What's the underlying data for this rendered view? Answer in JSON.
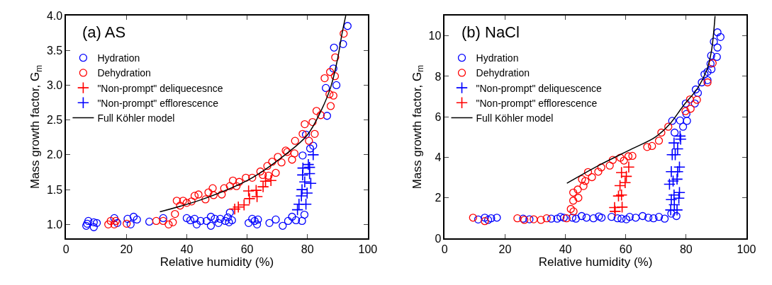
{
  "chart_data": [
    {
      "type": "scatter",
      "title": "(a) AS",
      "xlabel": "Relative humidity (%)",
      "ylabel": "Mass growth factor, G$_{m}$",
      "xlim": [
        0,
        100
      ],
      "xticks": [
        0,
        20,
        40,
        60,
        80,
        100
      ],
      "ylim": [
        0.8,
        4.0
      ],
      "yticks": [
        {
          "value": 1.0,
          "label": "1.0"
        },
        {
          "value": 1.5,
          "label": "1.5"
        },
        {
          "value": 2.0,
          "label": "2.0"
        },
        {
          "value": 2.5,
          "label": "2.5"
        },
        {
          "value": 3.0,
          "label": "3.0"
        },
        {
          "value": 3.5,
          "label": "3.5"
        },
        {
          "value": 4.0,
          "label": "4.0"
        }
      ],
      "legend": "top left",
      "series": [
        {
          "name": "Hydration",
          "color": "#0000ff",
          "marker": "circle",
          "x": [
            7.0,
            7.4,
            9.2,
            10.2,
            6.7,
            9.2,
            16.0,
            17.0,
            20.4,
            21.4,
            22.4,
            23.5,
            27.6,
            32.2,
            40.0,
            41.2,
            42.6,
            43.3,
            44.6,
            46.6,
            48.0,
            48.0,
            49.3,
            50.5,
            51.1,
            52.8,
            53.6,
            54.3,
            55.0,
            54.0,
            60.5,
            61.7,
            62.5,
            63.6,
            63.3,
            67.4,
            69.5,
            71.8,
            73.6,
            74.9,
            76.2,
            78.2,
            79.0,
            78.4,
            80.9,
            81.9,
            79.5,
            86.5,
            89.6,
            86.1,
            88.6,
            88.8,
            91.8,
            93.3
          ],
          "values": [
            1.01,
            1.05,
            1.03,
            1.02,
            0.98,
            0.96,
            1.09,
            1.02,
            1.08,
            1.0,
            1.11,
            1.07,
            1.04,
            1.09,
            1.09,
            1.06,
            1.08,
            1.0,
            1.05,
            1.05,
            1.11,
            0.98,
            1.08,
            1.02,
            1.08,
            1.05,
            1.1,
            1.17,
            1.06,
            1.03,
            1.02,
            1.08,
            1.05,
            1.07,
            1.0,
            1.02,
            1.07,
            0.98,
            1.05,
            1.11,
            1.06,
            1.05,
            1.14,
            1.99,
            2.09,
            2.13,
            2.29,
            2.56,
            3.0,
            2.96,
            3.24,
            3.54,
            3.59,
            3.85
          ]
        },
        {
          "name": "Dehydration",
          "color": "#ff0000",
          "marker": "circle",
          "x": [
            14.0,
            14.8,
            16.0,
            16.5,
            20.1,
            29.9,
            32.2,
            34.0,
            35.4,
            36.1,
            36.7,
            37.8,
            38.8,
            40.0,
            41.6,
            42.6,
            43.9,
            46.2,
            47.2,
            48.9,
            48.6,
            51.6,
            52.4,
            54.3,
            55.3,
            56.5,
            57.4,
            59.6,
            61.7,
            64.4,
            65.2,
            67.1,
            66.7,
            68.3,
            69.5,
            70.2,
            71.4,
            72.8,
            73.3,
            74.9,
            75.7,
            75.9,
            78.4,
            79.1,
            80.5,
            81.7,
            82.4,
            83.0,
            84.4,
            87.7,
            88.6,
            87.3,
            85.7,
            87.5,
            89.1,
            89.2,
            92.0
          ],
          "values": [
            1.0,
            1.05,
            1.0,
            1.05,
            1.01,
            1.05,
            1.05,
            1.0,
            1.03,
            1.15,
            1.34,
            1.27,
            1.34,
            1.31,
            1.33,
            1.41,
            1.43,
            1.36,
            1.46,
            1.42,
            1.52,
            1.43,
            1.52,
            1.55,
            1.63,
            1.55,
            1.61,
            1.67,
            1.67,
            1.76,
            1.71,
            1.7,
            1.84,
            1.9,
            1.74,
            1.97,
            1.89,
            2.06,
            2.04,
            1.93,
            2.02,
            2.2,
            2.3,
            2.44,
            2.2,
            2.47,
            2.3,
            2.63,
            2.57,
            2.7,
            2.85,
            2.87,
            3.1,
            3.19,
            3.13,
            3.4,
            3.74
          ]
        },
        {
          "name": "\"Non-prompt\" deliquecesnce",
          "color": "#ff0000",
          "marker": "cross",
          "x": [
            55.9,
            57.1,
            59.0,
            60.8,
            60.5,
            63.3,
            63.0,
            65.3,
            66.1,
            67.9
          ],
          "values": [
            1.22,
            1.25,
            1.28,
            1.37,
            1.48,
            1.4,
            1.49,
            1.54,
            1.62,
            1.63
          ]
        },
        {
          "name": "\"Non-prompt\" efflorescence",
          "color": "#0000ff",
          "marker": "cross",
          "x": [
            76.7,
            77.2,
            79.5,
            78.0,
            79.9,
            78.2,
            79.1,
            81.1,
            78.4,
            80.7,
            78.5,
            80.7,
            80.3,
            81.9
          ],
          "values": [
            1.21,
            1.29,
            1.29,
            1.41,
            1.45,
            1.5,
            1.61,
            1.59,
            1.71,
            1.73,
            1.81,
            1.82,
            1.86,
            2.0
          ]
        },
        {
          "name": "Full Köhler model",
          "color": "#000000",
          "type": "line",
          "marker": "none",
          "x": [
            31.1,
            45.8,
            61.3,
            72.9,
            79.9,
            84.6,
            87.7,
            90.0,
            91.5,
            92.7
          ],
          "values": [
            1.18,
            1.37,
            1.66,
            2.01,
            2.28,
            2.64,
            2.97,
            3.38,
            3.75,
            4.0
          ]
        }
      ]
    },
    {
      "type": "scatter",
      "title": "(b) NaCl",
      "xlabel": "Relative humidity (%)",
      "ylabel": "Mass growth factor, G$_{m}$",
      "xlim": [
        0,
        100
      ],
      "xticks": [
        0,
        20,
        40,
        60,
        80,
        100
      ],
      "ylim": [
        0,
        11
      ],
      "yticks": [
        0,
        2,
        4,
        6,
        8,
        10
      ],
      "legend": "top left",
      "series": [
        {
          "name": "Hydration",
          "color": "#0000ff",
          "marker": "circle",
          "x": [
            11.1,
            13.3,
            14.4,
            15.4,
            17.3,
            26.0,
            28.1,
            35.3,
            37.3,
            38.4,
            39.5,
            42.3,
            43.5,
            45.4,
            47.0,
            49.3,
            51.1,
            52.0,
            55.3,
            57.3,
            58.6,
            60.2,
            61.3,
            63.3,
            65.6,
            67.5,
            69.2,
            71.0,
            72.9,
            75.1,
            76.8,
            76.2,
            75.4,
            78.0,
            79.0,
            80.3,
            80.1,
            79.9,
            82.9,
            83.9,
            83.2,
            85.2,
            86.1,
            87.1,
            88.4,
            88.1,
            88.3,
            90.2,
            90.4,
            89.2,
            90.4,
            91.4,
            87.1
          ],
          "values": [
            0.93,
            1.02,
            0.91,
            0.99,
            1.02,
            0.97,
            0.94,
            0.97,
            0.97,
            1.06,
            1.02,
            1.02,
            0.97,
            1.1,
            1.02,
            0.99,
            1.08,
            1.02,
            1.06,
            0.99,
            0.97,
            0.94,
            1.06,
            1.02,
            1.1,
            1.02,
            0.99,
            1.06,
            0.97,
            1.22,
            1.1,
            5.22,
            5.8,
            5.82,
            5.51,
            5.8,
            6.14,
            6.66,
            6.66,
            7.18,
            7.35,
            7.7,
            8.1,
            8.22,
            8.35,
            8.62,
            9.02,
            8.96,
            9.42,
            9.71,
            10.17,
            9.94,
            7.81
          ]
        },
        {
          "name": "Dehydration",
          "color": "#ff0000",
          "marker": "circle",
          "x": [
            9.4,
            13.3,
            24.1,
            26.4,
            29.5,
            31.9,
            33.8,
            40.4,
            41.8,
            42.7,
            42.6,
            42.6,
            44.3,
            44.1,
            46.0,
            46.6,
            45.5,
            48.8,
            47.5,
            50.9,
            51.9,
            54.7,
            55.7,
            58.2,
            59.4,
            60.9,
            62.2,
            67.1,
            68.7,
            71.0,
            71.8,
            74.1,
            79.8,
            81.5,
            81.3,
            83.6,
            87.1,
            88.8
          ],
          "values": [
            1.02,
            0.85,
            0.99,
            0.91,
            0.94,
            0.91,
            0.99,
            0.99,
            1.45,
            1.33,
            1.86,
            2.26,
            2.0,
            2.41,
            2.58,
            2.83,
            2.92,
            3.02,
            3.27,
            3.29,
            3.5,
            3.59,
            3.87,
            3.98,
            3.84,
            4.05,
            4.07,
            4.51,
            4.56,
            4.82,
            5.22,
            5.51,
            6.28,
            6.4,
            6.86,
            6.84,
            7.7,
            8.65
          ]
        },
        {
          "name": "\"Non-prompt\" deliquescence",
          "color": "#0000ff",
          "marker": "cross",
          "x": [
            74.9,
            77.0,
            76.1,
            75.1,
            77.6,
            76.0,
            77.8,
            74.5,
            75.7,
            77.0,
            75.1,
            77.2,
            77.8,
            75.4,
            76.4,
            77.2,
            76.0,
            78.2,
            78.0
          ],
          "values": [
            1.4,
            1.4,
            1.66,
            1.91,
            1.98,
            2.14,
            2.26,
            2.67,
            2.83,
            2.92,
            3.29,
            3.29,
            3.52,
            4.13,
            4.13,
            4.42,
            4.71,
            4.9,
            5.05
          ]
        },
        {
          "name": "\"Non-prompt\" efflorescence",
          "color": "#ff0000",
          "marker": "cross",
          "x": [
            56.3,
            56.5,
            58.8,
            57.6,
            58.6,
            58.1,
            59.8,
            60.2,
            58.6,
            61.0
          ],
          "values": [
            1.52,
            1.33,
            1.54,
            2.09,
            2.14,
            2.6,
            2.75,
            3.06,
            3.25,
            3.52
          ]
        },
        {
          "name": "Full Köhler model",
          "color": "#000000",
          "type": "line",
          "marker": "none",
          "x": [
            40.5,
            51.2,
            62.1,
            69.8,
            74.5,
            79.1,
            83.8,
            86.9,
            88.4,
            89.6
          ],
          "values": [
            2.72,
            3.61,
            4.42,
            5.0,
            5.63,
            6.55,
            7.41,
            8.33,
            9.25,
            10.98
          ]
        }
      ]
    }
  ]
}
